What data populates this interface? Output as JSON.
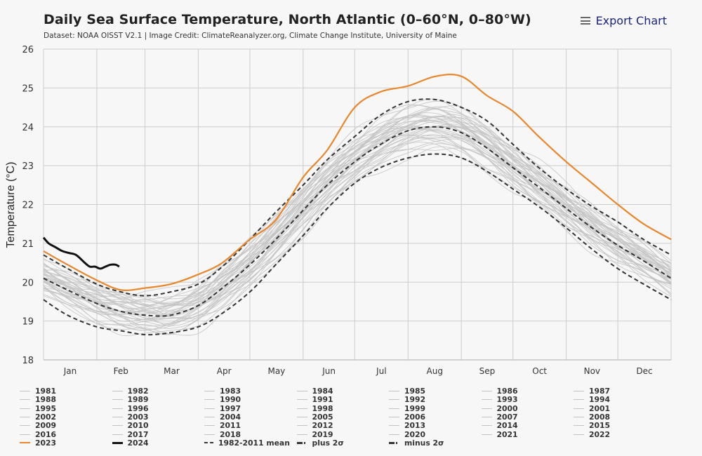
{
  "header": {
    "title": "Daily Sea Surface Temperature, North Atlantic (0–60°N, 0–80°W)",
    "subtitle": "Dataset: NOAA OISST V2.1 | Image Credit: ClimateReanalyzer.org, Climate Change Institute, University of Maine",
    "export_label": "Export Chart",
    "export_icon": "hamburger-menu-icon"
  },
  "colors": {
    "year_2023": "#e8872d",
    "year_2024": "#111111",
    "historical_years": "#c4c4c4",
    "stat_lines": "#333333",
    "grid": "#cccccc",
    "background": "#f7f7f7"
  },
  "chart_data": {
    "type": "line",
    "title": "Daily Sea Surface Temperature, North Atlantic (0–60°N, 0–80°W)",
    "xlabel": "",
    "ylabel": "Temperature (°C)",
    "ylim": [
      18,
      26
    ],
    "yticks": [
      18,
      19,
      20,
      21,
      22,
      23,
      24,
      25,
      26
    ],
    "xlim_day_of_year": [
      1,
      366
    ],
    "month_labels": [
      "Jan",
      "Feb",
      "Mar",
      "Apr",
      "May",
      "Jun",
      "Jul",
      "Aug",
      "Sep",
      "Oct",
      "Nov",
      "Dec"
    ],
    "month_starts_day": [
      1,
      32,
      60,
      91,
      121,
      152,
      182,
      213,
      244,
      274,
      305,
      335,
      366
    ],
    "grid": true,
    "legend_position": "bottom",
    "x_sample_days": [
      1,
      15,
      32,
      46,
      60,
      75,
      91,
      105,
      121,
      136,
      152,
      166,
      182,
      197,
      213,
      229,
      244,
      259,
      274,
      289,
      305,
      320,
      335,
      350,
      366
    ],
    "series": [
      {
        "name": "1982-2011 mean",
        "style": "dash",
        "values": [
          20.1,
          19.8,
          19.45,
          19.25,
          19.15,
          19.15,
          19.4,
          19.85,
          20.45,
          21.1,
          21.85,
          22.5,
          23.1,
          23.55,
          23.9,
          24.0,
          23.85,
          23.45,
          22.95,
          22.45,
          21.9,
          21.4,
          20.95,
          20.55,
          20.1
        ]
      },
      {
        "name": "plus 2σ",
        "style": "dashdot",
        "values": [
          20.7,
          20.35,
          19.95,
          19.75,
          19.65,
          19.75,
          19.95,
          20.4,
          21.1,
          21.8,
          22.5,
          23.15,
          23.75,
          24.3,
          24.65,
          24.7,
          24.5,
          24.15,
          23.55,
          22.95,
          22.4,
          21.95,
          21.55,
          21.1,
          20.7
        ]
      },
      {
        "name": "minus 2σ",
        "style": "dashdot",
        "values": [
          19.55,
          19.15,
          18.85,
          18.75,
          18.65,
          18.7,
          18.85,
          19.2,
          19.75,
          20.45,
          21.2,
          21.9,
          22.55,
          22.95,
          23.2,
          23.3,
          23.2,
          22.85,
          22.4,
          21.95,
          21.4,
          20.85,
          20.35,
          19.95,
          19.55
        ]
      },
      {
        "name": "2023",
        "style": "orange",
        "values": [
          20.8,
          20.45,
          20.05,
          19.8,
          19.85,
          19.95,
          20.2,
          20.5,
          21.1,
          21.6,
          22.7,
          23.4,
          24.5,
          24.9,
          25.05,
          25.3,
          25.3,
          24.8,
          24.4,
          23.75,
          23.1,
          22.55,
          22.0,
          21.5,
          21.1
        ]
      },
      {
        "name": "2024",
        "style": "black",
        "days": [
          1,
          4,
          8,
          12,
          16,
          20,
          25,
          28,
          31,
          34,
          37,
          40,
          43,
          45
        ],
        "values": [
          21.15,
          21.0,
          20.9,
          20.8,
          20.75,
          20.7,
          20.5,
          20.4,
          20.4,
          20.35,
          20.4,
          20.45,
          20.45,
          20.4
        ]
      }
    ],
    "historical_years": [
      "1981",
      "1982",
      "1983",
      "1984",
      "1985",
      "1986",
      "1987",
      "1988",
      "1989",
      "1990",
      "1991",
      "1992",
      "1993",
      "1994",
      "1995",
      "1996",
      "1997",
      "1998",
      "1999",
      "2000",
      "2001",
      "2002",
      "2003",
      "2004",
      "2005",
      "2006",
      "2007",
      "2008",
      "2009",
      "2010",
      "2011",
      "2012",
      "2013",
      "2014",
      "2015",
      "2016",
      "2017",
      "2018",
      "2019",
      "2020",
      "2021",
      "2022"
    ],
    "historical_offsets_from_mean": [
      -0.45,
      -0.4,
      -0.35,
      -0.5,
      -0.3,
      -0.25,
      -0.3,
      -0.2,
      -0.25,
      -0.15,
      -0.2,
      -0.1,
      -0.15,
      -0.05,
      -0.1,
      -0.05,
      0.0,
      0.05,
      0.0,
      0.05,
      0.1,
      0.05,
      0.1,
      0.15,
      0.1,
      0.2,
      0.15,
      0.2,
      0.25,
      0.2,
      0.15,
      0.3,
      0.25,
      0.3,
      0.35,
      0.3,
      0.35,
      0.3,
      0.4,
      0.45,
      0.45,
      0.55
    ]
  },
  "legend": {
    "columns": 7,
    "items": [
      "1981",
      "1982",
      "1983",
      "1984",
      "1985",
      "1986",
      "1987",
      "1988",
      "1989",
      "1990",
      "1991",
      "1992",
      "1993",
      "1994",
      "1995",
      "1996",
      "1997",
      "1998",
      "1999",
      "2000",
      "2001",
      "2002",
      "2003",
      "2004",
      "2005",
      "2006",
      "2007",
      "2008",
      "2009",
      "2010",
      "2011",
      "2012",
      "2013",
      "2014",
      "2015",
      "2016",
      "2017",
      "2018",
      "2019",
      "2020",
      "2021",
      "2022",
      "2023",
      "2024",
      "1982-2011 mean",
      "plus 2σ",
      "minus 2σ"
    ]
  }
}
